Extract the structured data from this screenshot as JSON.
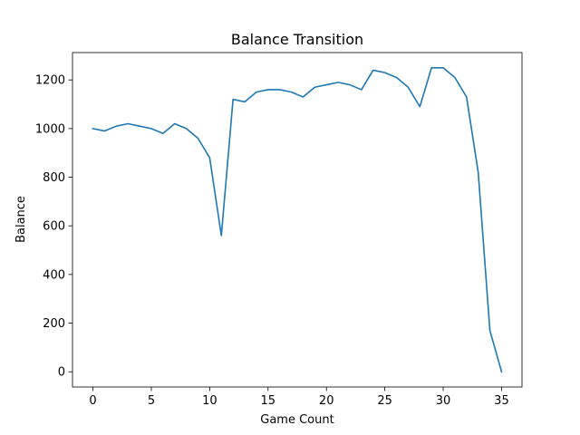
{
  "chart_data": {
    "type": "line",
    "title": "Balance Transition",
    "xlabel": "Game Count",
    "ylabel": "Balance",
    "xlim": [
      -1.75,
      36.75
    ],
    "ylim": [
      -62.5,
      1312.5
    ],
    "xticks": [
      0,
      5,
      10,
      15,
      20,
      25,
      30,
      35
    ],
    "yticks": [
      0,
      200,
      400,
      600,
      800,
      1000,
      1200
    ],
    "grid": false,
    "line_color": "#1f77b4",
    "series": [
      {
        "x": [
          0,
          1,
          2,
          3,
          4,
          5,
          6,
          7,
          8,
          9,
          10,
          11,
          12,
          13,
          14,
          15,
          16,
          17,
          18,
          19,
          20,
          21,
          22,
          23,
          24,
          25,
          26,
          27,
          28,
          29,
          30,
          31,
          32,
          33,
          34,
          35
        ],
        "values": [
          1000,
          990,
          1010,
          1020,
          1010,
          1000,
          980,
          1020,
          1000,
          960,
          880,
          560,
          1120,
          1110,
          1150,
          1160,
          1160,
          1150,
          1130,
          1170,
          1180,
          1190,
          1180,
          1160,
          1240,
          1230,
          1210,
          1170,
          1090,
          1250,
          1250,
          1210,
          1130,
          820,
          170,
          0
        ]
      }
    ]
  }
}
